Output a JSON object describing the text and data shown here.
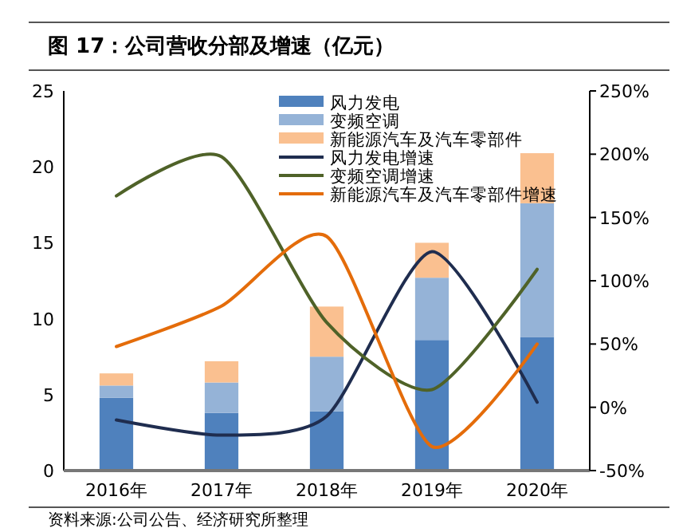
{
  "chart_data": {
    "type": "bar",
    "title": "图 17：公司营收分部及增速（亿元）",
    "categories": [
      "2016年",
      "2017年",
      "2018年",
      "2019年",
      "2020年"
    ],
    "stacked": true,
    "series": [
      {
        "name": "风力发电",
        "color": "#4f81bd",
        "values": [
          4.8,
          3.8,
          3.9,
          8.6,
          8.8
        ]
      },
      {
        "name": "变频空调",
        "color": "#95b3d7",
        "values": [
          0.8,
          2.0,
          3.6,
          4.1,
          8.8
        ]
      },
      {
        "name": "新能源汽车及汽车零部件",
        "color": "#fac090",
        "values": [
          0.8,
          1.4,
          3.3,
          2.3,
          3.3
        ]
      },
      {
        "name": "风力发电增速",
        "type": "line",
        "axis": "y2",
        "color": "#1f2d4f",
        "values": [
          -10,
          -22,
          -7,
          123,
          4
        ]
      },
      {
        "name": "变频空调增速",
        "type": "line",
        "axis": "y2",
        "color": "#4f6228",
        "values": [
          167,
          198,
          67,
          14,
          109
        ]
      },
      {
        "name": "新能源汽车及汽车零部件增速",
        "type": "line",
        "axis": "y2",
        "color": "#e46c0a",
        "values": [
          48,
          80,
          135,
          -31,
          50
        ]
      }
    ],
    "ylim": [
      0,
      25
    ],
    "yticks": [
      0,
      5,
      10,
      15,
      20,
      25
    ],
    "y2lim": [
      -50,
      250
    ],
    "y2ticks": [
      {
        "value": -50,
        "label": "-50%"
      },
      {
        "value": 0,
        "label": "0%"
      },
      {
        "value": 50,
        "label": "50%"
      },
      {
        "value": 100,
        "label": "100%"
      },
      {
        "value": 150,
        "label": "150%"
      },
      {
        "value": 200,
        "label": "200%"
      },
      {
        "value": 250,
        "label": "250%"
      }
    ],
    "legend": "top",
    "annotations": [
      "资料来源:公司公告、经济研究所整理"
    ]
  }
}
